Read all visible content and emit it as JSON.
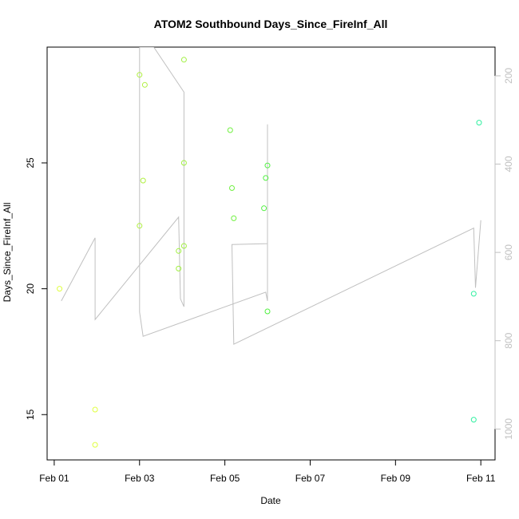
{
  "chart_data": {
    "type": "scatter",
    "title": "ATOM2 Southbound Days_Since_FireInf_All",
    "xlabel": "Date",
    "ylabel": "Days_Since_FireInf_All",
    "x_ticks": [
      "Feb 01",
      "Feb 03",
      "Feb 05",
      "Feb 07",
      "Feb 09",
      "Feb 11"
    ],
    "y_ticks": [
      "15",
      "20",
      "25"
    ],
    "y2_ticks": [
      "200",
      "400",
      "600",
      "800",
      "1000"
    ],
    "xlim": [
      "2024-01-31 20:00",
      "2024-02-11 08:00"
    ],
    "ylim": [
      13.2,
      29.6
    ],
    "y2lim": [
      1070,
      135
    ],
    "grid": false,
    "points": {
      "name": "Days_Since_FireInf_All",
      "values": [
        {
          "x": "2024-02-01 03:00",
          "y": 20.0,
          "color": "#e0ff40"
        },
        {
          "x": "2024-02-01 23:00",
          "y": 15.2,
          "color": "#e0ff40"
        },
        {
          "x": "2024-02-01 23:00",
          "y": 13.8,
          "color": "#e0ff40"
        },
        {
          "x": "2024-02-03 00:00",
          "y": 28.5,
          "color": "#b0f040"
        },
        {
          "x": "2024-02-03 00:00",
          "y": 22.5,
          "color": "#b0f040"
        },
        {
          "x": "2024-02-03 02:00",
          "y": 24.3,
          "color": "#b0f040"
        },
        {
          "x": "2024-02-03 03:00",
          "y": 28.1,
          "color": "#b0f040"
        },
        {
          "x": "2024-02-03 22:00",
          "y": 21.5,
          "color": "#a0f040"
        },
        {
          "x": "2024-02-03 22:00",
          "y": 20.8,
          "color": "#a0f040"
        },
        {
          "x": "2024-02-04 01:00",
          "y": 21.7,
          "color": "#a0f040"
        },
        {
          "x": "2024-02-04 01:00",
          "y": 25.0,
          "color": "#a0f040"
        },
        {
          "x": "2024-02-04 01:00",
          "y": 29.1,
          "color": "#a0f040"
        },
        {
          "x": "2024-02-05 03:00",
          "y": 26.3,
          "color": "#70f040"
        },
        {
          "x": "2024-02-05 04:00",
          "y": 24.0,
          "color": "#70f040"
        },
        {
          "x": "2024-02-05 05:00",
          "y": 22.8,
          "color": "#70f040"
        },
        {
          "x": "2024-02-05 22:00",
          "y": 23.2,
          "color": "#50f040"
        },
        {
          "x": "2024-02-05 23:00",
          "y": 24.4,
          "color": "#50f040"
        },
        {
          "x": "2024-02-06 00:00",
          "y": 24.9,
          "color": "#50f040"
        },
        {
          "x": "2024-02-06 00:00",
          "y": 19.1,
          "color": "#50f040"
        },
        {
          "x": "2024-02-10 20:00",
          "y": 19.8,
          "color": "#30f0a0"
        },
        {
          "x": "2024-02-10 20:00",
          "y": 14.8,
          "color": "#30f0a0"
        },
        {
          "x": "2024-02-10 23:00",
          "y": 26.6,
          "color": "#30f0a0"
        }
      ]
    },
    "line": {
      "axis": "right",
      "color": "#c0c0c0",
      "values": [
        {
          "x": "2024-02-01 04:00",
          "y2": 710
        },
        {
          "x": "2024-02-01 23:00",
          "y2": 567
        },
        {
          "x": "2024-02-01 23:00",
          "y2": 752
        },
        {
          "x": "2024-02-03 22:00",
          "y2": 520
        },
        {
          "x": "2024-02-03 23:00",
          "y2": 705
        },
        {
          "x": "2024-02-04 01:00",
          "y2": 723
        },
        {
          "x": "2024-02-04 01:00",
          "y2": 237
        },
        {
          "x": "2024-02-03 08:00",
          "y2": 135
        },
        {
          "x": "2024-02-03 00:00",
          "y2": 135
        },
        {
          "x": "2024-02-03 00:00",
          "y2": 735
        },
        {
          "x": "2024-02-03 02:00",
          "y2": 790
        },
        {
          "x": "2024-02-05 23:00",
          "y2": 690
        },
        {
          "x": "2024-02-06 00:00",
          "y2": 710
        },
        {
          "x": "2024-02-06 00:00",
          "y2": 310
        },
        {
          "x": "2024-02-06 00:00",
          "y2": 580
        },
        {
          "x": "2024-02-05 04:00",
          "y2": 582
        },
        {
          "x": "2024-02-05 05:00",
          "y2": 808
        },
        {
          "x": "2024-02-10 20:00",
          "y2": 545
        },
        {
          "x": "2024-02-10 21:00",
          "y2": 680
        },
        {
          "x": "2024-02-11 00:00",
          "y2": 527
        }
      ]
    }
  }
}
